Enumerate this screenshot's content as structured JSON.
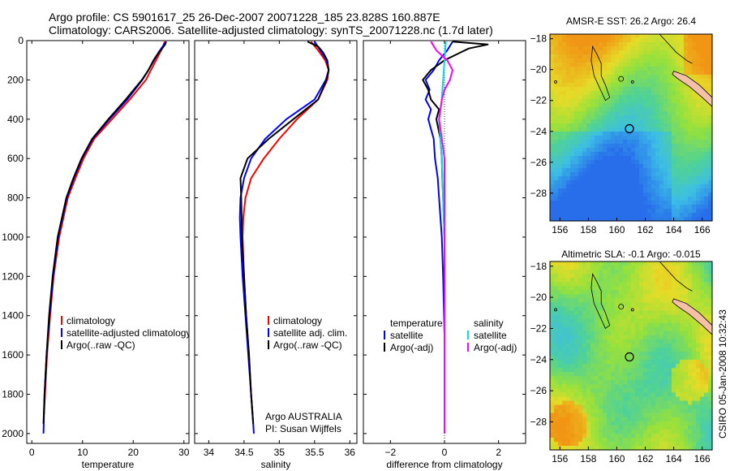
{
  "header": {
    "line1": "Argo profile: CS 5901617_25 26-Dec-2007 20071228_185 23.828S 160.887E",
    "line2": "Climatology: CARS2006. Satellite-adjusted climatology: synTS_20071228.nc (1.7d later)"
  },
  "signature": "CSIRO 05-Jan-2008 10:32:43",
  "colors": {
    "climatology": "#ff0000",
    "satellite": "#0000ff",
    "argo": "#000000",
    "sal_satellite": "#00e0e0",
    "sal_argo": "#ff00ff",
    "land": "#f4c0a8"
  },
  "chart_data": [
    {
      "type": "line",
      "xlabel": "temperature",
      "ylabel": "",
      "xlim": [
        -1,
        31
      ],
      "ylim": [
        2050,
        0
      ],
      "xticks": [
        0,
        10,
        20,
        30
      ],
      "yticks": [
        0,
        200,
        400,
        600,
        800,
        1000,
        1200,
        1400,
        1600,
        1800,
        2000
      ],
      "legend": {
        "placement": "lower-right",
        "entries": [
          "climatology",
          "satellite-adjusted climatology",
          "Argo(..raw -QC)"
        ]
      },
      "series": [
        {
          "name": "climatology",
          "color": "#ff0000",
          "depth": [
            5,
            30,
            60,
            100,
            150,
            200,
            300,
            400,
            500,
            600,
            700,
            800,
            1000,
            1200,
            1400,
            1600,
            1800,
            1900
          ],
          "values": [
            26.2,
            25.9,
            25.3,
            24.5,
            23.5,
            22.5,
            19.3,
            15.8,
            12.3,
            10.2,
            8.6,
            7.1,
            5.4,
            4.3,
            3.6,
            3.0,
            2.6,
            2.4
          ]
        },
        {
          "name": "satellite-adjusted climatology",
          "color": "#0000ff",
          "depth": [
            5,
            30,
            60,
            100,
            150,
            200,
            300,
            400,
            500,
            600,
            700,
            800,
            1000,
            1200,
            1400,
            1600,
            1800,
            2000
          ],
          "values": [
            26.5,
            25.8,
            25.0,
            24.1,
            23.0,
            21.8,
            18.8,
            15.3,
            12.0,
            9.9,
            8.3,
            6.9,
            5.2,
            4.2,
            3.5,
            2.9,
            2.5,
            2.3
          ]
        },
        {
          "name": "Argo(..raw -QC)",
          "color": "#000000",
          "depth": [
            5,
            20,
            40,
            60,
            80,
            100,
            150,
            200,
            300,
            400,
            500,
            600,
            700,
            800,
            1000,
            1200,
            1400,
            1600,
            1800,
            1950
          ],
          "values": [
            26.5,
            26.3,
            25.7,
            25.1,
            24.5,
            24.0,
            23.0,
            21.7,
            18.5,
            15.1,
            11.9,
            9.8,
            8.2,
            6.8,
            5.1,
            4.1,
            3.4,
            2.9,
            2.5,
            2.3
          ]
        }
      ]
    },
    {
      "type": "line",
      "xlabel": "salinity",
      "ylabel": "",
      "xlim": [
        33.8,
        36.1
      ],
      "ylim": [
        2050,
        0
      ],
      "xticks": [
        34,
        34.5,
        35,
        35.5,
        36
      ],
      "yticks": [
        0,
        200,
        400,
        600,
        800,
        1000,
        1200,
        1400,
        1600,
        1800,
        2000
      ],
      "legend": {
        "placement": "lower-right",
        "entries": [
          "climatology",
          "satellite adj. clim.",
          "Argo(..raw -QC)"
        ]
      },
      "annotation": {
        "line1": "Argo AUSTRALIA",
        "line2": "PI: Susan Wijffels"
      },
      "series": [
        {
          "name": "climatology",
          "color": "#ff0000",
          "depth": [
            5,
            50,
            100,
            150,
            200,
            300,
            400,
            500,
            600,
            700,
            800,
            900,
            1000,
            1200,
            1400,
            1600,
            1800,
            1900
          ],
          "values": [
            35.45,
            35.55,
            35.65,
            35.7,
            35.68,
            35.55,
            35.25,
            35.0,
            34.78,
            34.6,
            34.52,
            34.49,
            34.48,
            34.5,
            34.53,
            34.57,
            34.6,
            34.62
          ]
        },
        {
          "name": "satellite adj. clim.",
          "color": "#0000ff",
          "depth": [
            5,
            50,
            100,
            150,
            200,
            300,
            400,
            500,
            600,
            700,
            800,
            900,
            1000,
            1200,
            1400,
            1600,
            1800,
            2000
          ],
          "values": [
            35.5,
            35.58,
            35.67,
            35.7,
            35.66,
            35.5,
            35.1,
            34.8,
            34.6,
            34.5,
            34.45,
            34.44,
            34.45,
            34.48,
            34.52,
            34.56,
            34.6,
            34.64
          ]
        },
        {
          "name": "Argo(..raw -QC)",
          "color": "#000000",
          "depth": [
            5,
            30,
            60,
            100,
            150,
            200,
            300,
            400,
            500,
            600,
            700,
            800,
            1000,
            1200,
            1400,
            1600,
            1800,
            1950
          ],
          "values": [
            35.4,
            35.55,
            35.62,
            35.68,
            35.7,
            35.67,
            35.55,
            35.2,
            34.85,
            34.55,
            34.45,
            34.46,
            34.47,
            34.5,
            34.53,
            34.57,
            34.6,
            34.63
          ]
        }
      ]
    },
    {
      "type": "line",
      "xlabel": "difference from climatology",
      "ylabel": "",
      "xlim": [
        -3,
        3
      ],
      "ylim": [
        2050,
        0
      ],
      "xticks": [
        -2,
        0,
        2
      ],
      "yticks": [
        0,
        200,
        400,
        600,
        800,
        1000,
        1200,
        1400,
        1600,
        1800,
        2000
      ],
      "legend": {
        "placement": "lower-center",
        "temperature_title": "temperature",
        "salinity_title": "salinity",
        "entries": [
          "satellite",
          "Argo(-adj)",
          "satellite",
          "Argo(-adj)"
        ]
      },
      "series": [
        {
          "name": "temperature satellite",
          "color": "#0000ff",
          "depth": [
            5,
            50,
            100,
            150,
            200,
            250,
            300,
            350,
            400,
            450,
            500,
            600,
            700,
            800,
            1000,
            1200,
            1500,
            2000
          ],
          "values": [
            0.3,
            0.1,
            -0.2,
            -0.4,
            -0.7,
            -0.55,
            -0.7,
            -0.5,
            -0.6,
            -0.5,
            -0.4,
            -0.35,
            -0.25,
            -0.2,
            -0.1,
            -0.05,
            0.0,
            0.0
          ]
        },
        {
          "name": "temperature Argo(-adj)",
          "color": "#000000",
          "depth": [
            5,
            20,
            40,
            60,
            80,
            100,
            150,
            200,
            250,
            300,
            350,
            400,
            500,
            600,
            700,
            800,
            1000,
            1200,
            1500,
            2000
          ],
          "values": [
            0.3,
            1.6,
            0.9,
            0.6,
            0.3,
            0.0,
            -0.5,
            -0.8,
            -0.6,
            -0.5,
            -0.2,
            -0.3,
            -0.15,
            -0.1,
            -0.08,
            -0.05,
            0.0,
            0.0,
            0.0,
            0.0
          ]
        },
        {
          "name": "salinity satellite",
          "color": "#00e0e0",
          "depth": [
            5,
            100,
            200,
            300,
            400,
            500,
            600,
            800,
            1000,
            1500,
            2000
          ],
          "values": [
            0.05,
            0.0,
            -0.05,
            -0.1,
            -0.2,
            -0.15,
            -0.1,
            -0.05,
            0.0,
            0.0,
            0.0
          ]
        },
        {
          "name": "salinity Argo(-adj)",
          "color": "#ff00ff",
          "depth": [
            5,
            50,
            100,
            150,
            200,
            250,
            300,
            400,
            500,
            600,
            800,
            1000,
            1200,
            1500,
            1700,
            2000
          ],
          "values": [
            -0.5,
            -0.3,
            0.1,
            0.3,
            0.2,
            0.0,
            -0.1,
            -0.2,
            -0.1,
            0.0,
            0.0,
            0.0,
            0.0,
            0.0,
            0.0,
            0.0
          ]
        }
      ]
    },
    {
      "type": "heatmap",
      "title": "AMSR-E SST: 26.2 Argo: 26.4",
      "xlim": [
        155.3,
        166.7
      ],
      "ylim": [
        -29.8,
        -17.7
      ],
      "xticks": [
        156,
        158,
        160,
        162,
        164,
        166
      ],
      "yticks": [
        -18,
        -20,
        -22,
        -24,
        -26,
        -28
      ],
      "marker": {
        "lon": 160.887,
        "lat": -23.828
      }
    },
    {
      "type": "heatmap",
      "title": "Altimetric SLA: -0.1 Argo: -0.015",
      "xlim": [
        155.3,
        166.7
      ],
      "ylim": [
        -29.8,
        -17.7
      ],
      "xticks": [
        156,
        158,
        160,
        162,
        164,
        166
      ],
      "yticks": [
        -18,
        -20,
        -22,
        -24,
        -26,
        -28
      ],
      "marker": {
        "lon": 160.887,
        "lat": -23.828
      }
    }
  ]
}
